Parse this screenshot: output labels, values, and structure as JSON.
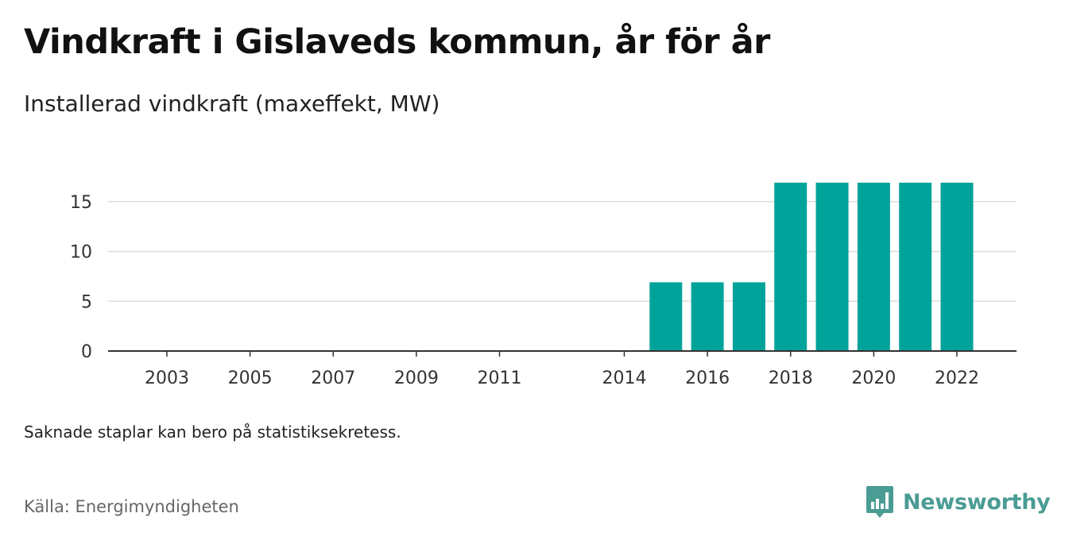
{
  "title": "Vindkraft i Gislaveds kommun, år för år",
  "subtitle": "Installerad vindkraft (maxeffekt, MW)",
  "note": "Saknade staplar kan bero på statistiksekretess.",
  "source": "Källa: Energimyndigheten",
  "brand": {
    "name": "Newsworthy",
    "logo_icon": "bar-chart-speech-bubble-icon",
    "color": "#4a9c94"
  },
  "colors": {
    "bar": "#00a39a",
    "grid": "#dddddd",
    "axis": "#333333"
  },
  "chart_data": {
    "type": "bar",
    "categories": [
      "2003",
      "2004",
      "2005",
      "2006",
      "2007",
      "2008",
      "2009",
      "2010",
      "2011",
      "2012",
      "2013",
      "2014",
      "2015",
      "2016",
      "2017",
      "2018",
      "2019",
      "2020",
      "2021",
      "2022"
    ],
    "values": [
      0,
      0,
      0,
      0,
      0,
      0,
      0,
      0,
      0,
      null,
      null,
      0,
      6.9,
      6.9,
      6.9,
      16.9,
      16.9,
      16.9,
      16.9,
      16.9
    ],
    "x_tick_labels": [
      "2003",
      "2005",
      "2007",
      "2009",
      "2011",
      "2014",
      "2016",
      "2018",
      "2020",
      "2022"
    ],
    "y_ticks": [
      0,
      5,
      10,
      15
    ],
    "ylim": [
      0,
      18.5
    ],
    "grid": true,
    "xlabel": "",
    "ylabel": ""
  }
}
